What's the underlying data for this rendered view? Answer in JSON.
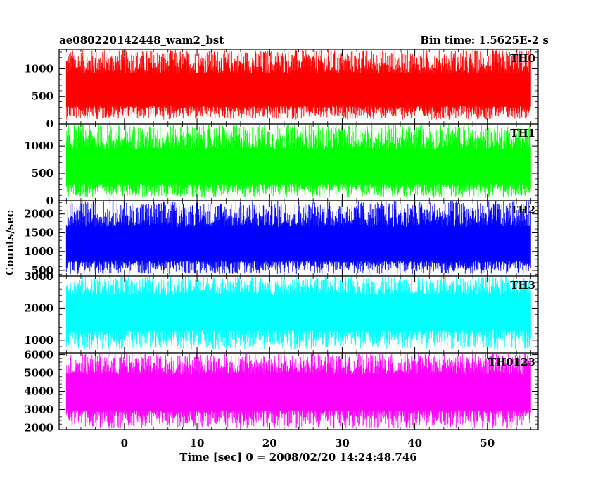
{
  "header": {
    "title": "ae080220142448_wam2_bst",
    "bin_time": "Bin time: 1.5625E-2 s"
  },
  "chart_data": {
    "type": "line",
    "xlabel": "Time [sec] 0 = 2008/02/20 14:24:48.746",
    "ylabel": "Counts/sec",
    "xlim": [
      -9,
      57
    ],
    "xticks": [
      0,
      10,
      20,
      30,
      40,
      50
    ],
    "xdata_range": [
      -8,
      56
    ],
    "grid": false,
    "panels": [
      {
        "name": "TH0",
        "color": "#ff0000",
        "ylim": [
          0,
          1350
        ],
        "yticks": [
          0,
          500,
          1000
        ],
        "ytick_labels": [
          "0",
          "500",
          "1000"
        ],
        "level": 560,
        "min": 80,
        "max": 1350
      },
      {
        "name": "TH1",
        "color": "#00ff00",
        "ylim": [
          0,
          1400
        ],
        "yticks": [
          0,
          500,
          1000
        ],
        "ytick_labels": [
          "0",
          "500",
          "1000"
        ],
        "level": 560,
        "min": 60,
        "max": 1400
      },
      {
        "name": "TH2",
        "color": "#0000ff",
        "ylim": [
          350,
          2350
        ],
        "yticks": [
          500,
          1000,
          1500,
          2000
        ],
        "ytick_labels": [
          "500",
          "1000",
          "1500",
          "2000"
        ],
        "level": 1100,
        "min": 400,
        "max": 2350
      },
      {
        "name": "TH3",
        "color": "#00ffff",
        "ylim": [
          600,
          3000
        ],
        "yticks": [
          1000,
          2000,
          3000
        ],
        "ytick_labels": [
          "1000",
          "2000",
          "3000"
        ],
        "level": 1900,
        "min": 700,
        "max": 3000
      },
      {
        "name": "TH0123",
        "color": "#ff00ff",
        "ylim": [
          1900,
          6100
        ],
        "yticks": [
          2000,
          3000,
          4000,
          5000,
          6000
        ],
        "ytick_labels": [
          "2000",
          "3000",
          "4000",
          "5000",
          "6000"
        ],
        "level": 3950,
        "min": 1950,
        "max": 6100
      }
    ]
  }
}
